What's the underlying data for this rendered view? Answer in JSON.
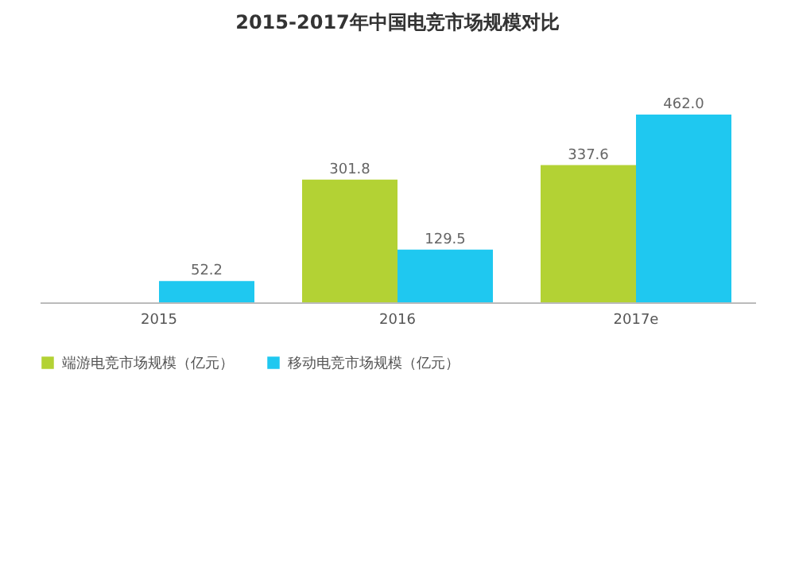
{
  "chart_data": {
    "type": "bar",
    "title": "2015-2017年中国电竞市场规模对比",
    "categories": [
      "2015",
      "2016",
      "2017e"
    ],
    "series": [
      {
        "name": "端游电竞市场规模（亿元）",
        "color": "#b3d234",
        "values": [
          null,
          301.8,
          337.6
        ],
        "value_labels": [
          null,
          "301.8",
          "337.6"
        ]
      },
      {
        "name": "移动电竞市场规模（亿元）",
        "color": "#1fc8f0",
        "values": [
          52.2,
          129.5,
          462.0
        ],
        "value_labels": [
          "52.2",
          "129.5",
          "462.0"
        ]
      }
    ],
    "legend": "bottom"
  }
}
